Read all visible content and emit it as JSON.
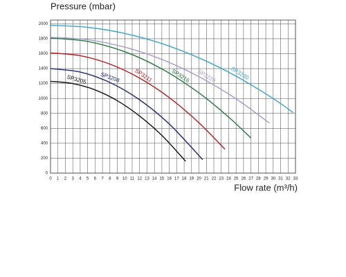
{
  "chart_data": {
    "type": "line",
    "ylabel": "Pressure (mbar)",
    "xlabel": "Flow rate (m³/h)",
    "xlim": [
      0,
      33
    ],
    "xticks": [
      0,
      1,
      2,
      3,
      4,
      5,
      6,
      7,
      8,
      9,
      10,
      11,
      12,
      13,
      14,
      15,
      16,
      17,
      18,
      19,
      20,
      21,
      22,
      23,
      24,
      25,
      26,
      27,
      28,
      29,
      30,
      31,
      32,
      33
    ],
    "ylim": [
      0,
      2050
    ],
    "yticks": [
      0,
      200,
      400,
      600,
      800,
      1000,
      1200,
      1400,
      1600,
      1800,
      2000
    ],
    "grid": true,
    "series": [
      {
        "name": "SP3205",
        "color": "#111111",
        "x": [
          0,
          3,
          6,
          9,
          12,
          15,
          18.2
        ],
        "values": [
          1230,
          1200,
          1115,
          970,
          765,
          505,
          160
        ]
      },
      {
        "name": "SP3208",
        "color": "#1f2a7a",
        "x": [
          0,
          4,
          8,
          12,
          16,
          20.5
        ],
        "values": [
          1400,
          1354,
          1214,
          982,
          658,
          180
        ]
      },
      {
        "name": "SP3211",
        "color": "#c0171d",
        "x": [
          0,
          4,
          8,
          12,
          16,
          20,
          23.5
        ],
        "values": [
          1610,
          1573,
          1460,
          1273,
          1011,
          674,
          320
        ]
      },
      {
        "name": "SP3216",
        "color": "#1d7a3e",
        "x": [
          0,
          5,
          10,
          15,
          20,
          24,
          27
        ],
        "values": [
          1810,
          1764,
          1626,
          1396,
          1074,
          750,
          470
        ]
      },
      {
        "name": "SP3220",
        "color": "#a89ad0",
        "x": [
          0,
          5,
          10,
          15,
          20,
          25,
          29.5
        ],
        "values": [
          1820,
          1787,
          1688,
          1523,
          1292,
          995,
          670
        ]
      },
      {
        "name": "SP3230",
        "color": "#35a8cf",
        "x": [
          0,
          5,
          10,
          15,
          20,
          25,
          30,
          32.7
        ],
        "values": [
          1980,
          1953,
          1871,
          1735,
          1544,
          1299,
          999,
          810
        ]
      }
    ]
  }
}
